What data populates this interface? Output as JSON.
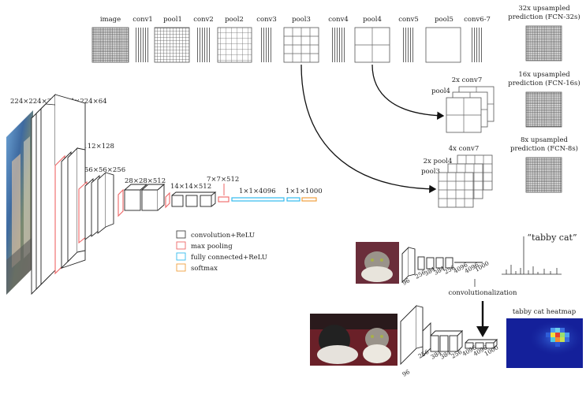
{
  "fcn_diagram": {
    "layer_labels": [
      "image",
      "conv1",
      "pool1",
      "conv2",
      "pool2",
      "conv3",
      "pool3",
      "conv4",
      "pool4",
      "conv5",
      "pool5",
      "conv6-7"
    ],
    "predictions": [
      [
        "32x upsampled",
        "prediction (FCN-32s)"
      ],
      [
        "16x upsampled",
        "prediction (FCN-16s)"
      ],
      [
        "8x upsampled",
        "prediction (FCN-8s)"
      ]
    ],
    "skip16": {
      "conv7": "2x conv7",
      "pool4": "pool4"
    },
    "skip8": {
      "conv7": "4x conv7",
      "pool4": "2x pool4",
      "pool3": "pool3"
    }
  },
  "vgg_diagram": {
    "dims": [
      "224×224×3",
      "224×224×64",
      "112×112×128",
      "56×56×256",
      "28×28×512",
      "14×14×512",
      "7×7×512",
      "1×1×4096",
      "1×1×1000"
    ],
    "legend": [
      {
        "label": "convolution+ReLU",
        "color": "#444444"
      },
      {
        "label": "max pooling",
        "color": "#ee6666"
      },
      {
        "label": "fully connected+ReLU",
        "color": "#33bbee"
      },
      {
        "label": "softmax",
        "color": "#f0a040"
      }
    ]
  },
  "classifier": {
    "output_label": "“tabby cat”",
    "top_sizes": [
      "96",
      "256",
      "384",
      "384",
      "256",
      "4096",
      "4096",
      "1000"
    ],
    "bottom_sizes": [
      "96",
      "256",
      "384",
      "384",
      "256",
      "4096",
      "4096",
      "1000"
    ],
    "transform_label": "convolutionalization",
    "heatmap_title": "tabby cat heatmap"
  },
  "colors": {
    "pool": "#ee6666",
    "fc": "#33bbee",
    "softmax": "#f0a040",
    "line": "#444444"
  }
}
